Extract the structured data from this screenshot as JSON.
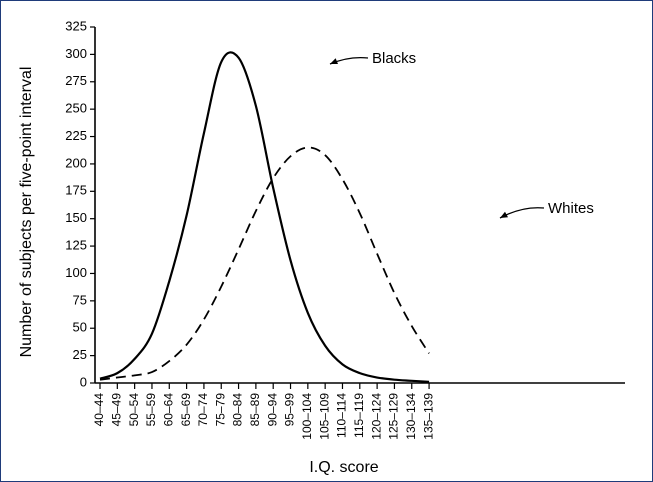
{
  "chart_data": {
    "type": "line",
    "ylabel": "Number of subjects per five-point interval",
    "xlabel": "I.Q. score",
    "categories": [
      "40–44",
      "45–49",
      "50–54",
      "55–59",
      "60–64",
      "65–69",
      "70–74",
      "75–79",
      "80–84",
      "85–89",
      "90–94",
      "95–99",
      "100–104",
      "105–109",
      "110–114",
      "115–119",
      "120–124",
      "125–129",
      "130–134",
      "135–139"
    ],
    "yticks": [
      0,
      25,
      50,
      75,
      100,
      125,
      150,
      175,
      200,
      225,
      250,
      275,
      300,
      325
    ],
    "ylim": [
      0,
      325
    ],
    "series": [
      {
        "name": "Blacks",
        "style": "solid",
        "values": [
          4,
          9,
          22,
          45,
          93,
          153,
          228,
          293,
          297,
          253,
          178,
          112,
          64,
          34,
          17,
          9,
          5,
          3,
          2,
          1
        ]
      },
      {
        "name": "Whites",
        "style": "dashed",
        "values": [
          3,
          5,
          7,
          10,
          20,
          35,
          58,
          88,
          122,
          157,
          187,
          207,
          215,
          208,
          186,
          155,
          118,
          82,
          52,
          27
        ]
      }
    ],
    "annotations": [
      {
        "text": "Blacks",
        "series": "Blacks"
      },
      {
        "text": "Whites",
        "series": "Whites"
      }
    ],
    "grid": false
  },
  "colors": {
    "frame": "#1f3b7a",
    "ink": "#000000"
  }
}
